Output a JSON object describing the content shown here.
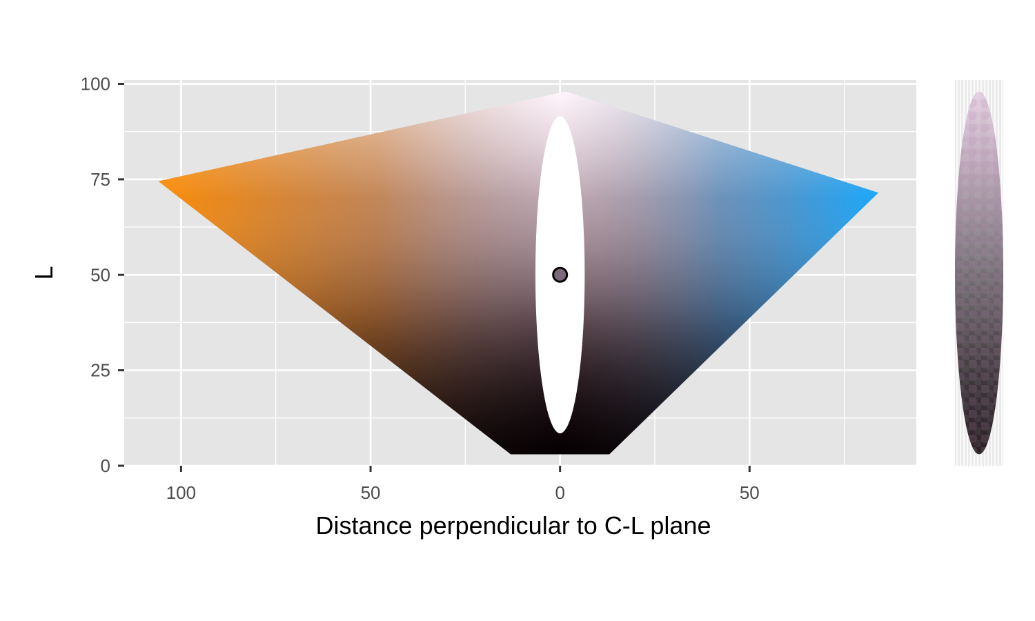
{
  "chart_data": {
    "type": "scatter",
    "title": "",
    "xlabel": "Distance perpendicular to C-L plane",
    "ylabel": "L",
    "xlim": [
      -115,
      94
    ],
    "ylim": [
      0,
      101
    ],
    "x_ticks": [
      {
        "value": -100,
        "label": "100"
      },
      {
        "value": -50,
        "label": "50"
      },
      {
        "value": 0,
        "label": "0"
      },
      {
        "value": 50,
        "label": "50"
      }
    ],
    "y_ticks": [
      {
        "value": 0,
        "label": "0"
      },
      {
        "value": 25,
        "label": "25"
      },
      {
        "value": 50,
        "label": "50"
      },
      {
        "value": 75,
        "label": "75"
      },
      {
        "value": 100,
        "label": "100"
      }
    ],
    "grid": true,
    "background": "#e5e5e5",
    "gamut_polygon": {
      "description_colors": {
        "left": "#ff8c00",
        "right": "#12a8ff",
        "top": "#fff0fa",
        "bottom": "#1a0008"
      },
      "points": [
        {
          "x": 1.5,
          "L": 98
        },
        {
          "x": 84,
          "L": 71.5
        },
        {
          "x": 13,
          "L": 3
        },
        {
          "x": -13,
          "L": 3
        },
        {
          "x": -106,
          "L": 74.5
        }
      ]
    },
    "excluded_region": {
      "center_x": 0,
      "center_L": 50,
      "half_width_x": 6.5,
      "half_height_L": 41.5,
      "fill": "#ffffff"
    },
    "reference_point": {
      "x": 0,
      "L": 50,
      "color": "#7a6a78"
    },
    "side_panel": {
      "L_range": [
        3,
        98
      ],
      "colors": {
        "top": "#e3cfe0",
        "middle": "#767076",
        "bottom": "#2b2226",
        "accent": "#b98ab3"
      }
    }
  }
}
